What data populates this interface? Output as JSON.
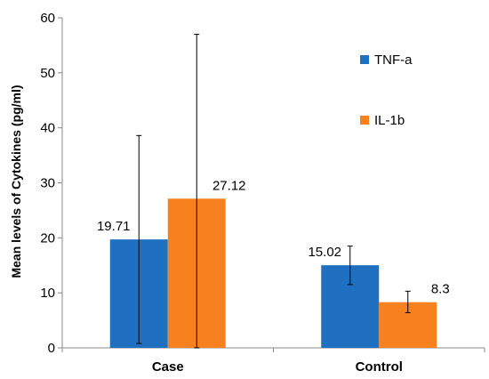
{
  "chart_data": {
    "type": "bar",
    "categories": [
      "Case",
      "Control"
    ],
    "series": [
      {
        "name": "TNF-a",
        "color": "#1f70c1",
        "values": [
          19.71,
          15.02
        ],
        "error_low": [
          0.8,
          11.5
        ],
        "error_high": [
          38.6,
          18.5
        ],
        "data_labels": [
          "19.71",
          "15.02"
        ]
      },
      {
        "name": "IL-1b",
        "color": "#f7811f",
        "values": [
          27.12,
          8.3
        ],
        "error_low": [
          0,
          6.4
        ],
        "error_high": [
          57.0,
          10.3
        ],
        "data_labels": [
          "27.12",
          "8.3"
        ]
      }
    ],
    "ylabel": "Mean levels of Cytokines (pg/ml)",
    "xlabel": "",
    "title": "",
    "ylim": [
      0,
      60
    ],
    "yticks": [
      "0",
      "10",
      "20",
      "30",
      "40",
      "50",
      "60"
    ],
    "grid": false,
    "legend": "right"
  }
}
